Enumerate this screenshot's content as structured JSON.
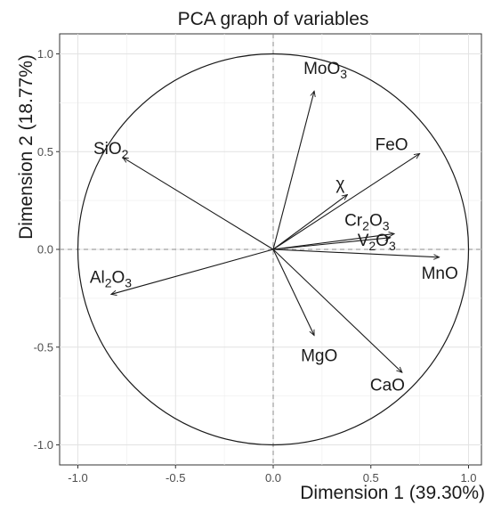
{
  "chart_data": {
    "type": "scatter",
    "title": "PCA graph of variables",
    "xlabel": "Dimension 1 (39.30%)",
    "ylabel": "Dimension 2 (18.77%)",
    "xlim": [
      -1.1,
      1.1
    ],
    "ylim": [
      -1.05,
      1.1
    ],
    "grid": true,
    "x_ticks": [
      -1.0,
      -0.5,
      0.0,
      0.5,
      1.0
    ],
    "y_ticks": [
      -1.0,
      -0.5,
      0.0,
      0.5,
      1.0
    ],
    "x_tick_labels": [
      "-1.0",
      "-0.5",
      "0.0",
      "0.5",
      "1.0"
    ],
    "y_tick_labels": [
      "-1.0",
      "-0.5",
      "0.0",
      "0.5",
      "1.0"
    ],
    "correlation_circle_radius": 1.0,
    "variables": [
      {
        "name": "MoO3",
        "label": "MoO",
        "sub": "3",
        "x": 0.21,
        "y": 0.81
      },
      {
        "name": "SiO2",
        "label": "SiO",
        "sub": "2",
        "x": -0.77,
        "y": 0.47
      },
      {
        "name": "FeO",
        "label": "FeO",
        "sub": "",
        "x": 0.75,
        "y": 0.49
      },
      {
        "name": "chi",
        "label": "χ",
        "sub": "",
        "x": 0.38,
        "y": 0.28
      },
      {
        "name": "Cr2O3",
        "label": "Cr",
        "sub": "2",
        "label2": "O",
        "sub2": "3",
        "x": 0.62,
        "y": 0.08
      },
      {
        "name": "V2O3",
        "label": "V",
        "sub": "2",
        "label2": "O",
        "sub2": "3",
        "x": 0.6,
        "y": 0.06
      },
      {
        "name": "MnO",
        "label": "MnO",
        "sub": "",
        "x": 0.85,
        "y": -0.04
      },
      {
        "name": "Al2O3",
        "label": "Al",
        "sub": "2",
        "label2": "O",
        "sub2": "3",
        "x": -0.83,
        "y": -0.23
      },
      {
        "name": "MgO",
        "label": "MgO",
        "sub": "",
        "x": 0.21,
        "y": -0.44
      },
      {
        "name": "CaO",
        "label": "CaO",
        "sub": "",
        "x": 0.66,
        "y": -0.63
      }
    ]
  }
}
